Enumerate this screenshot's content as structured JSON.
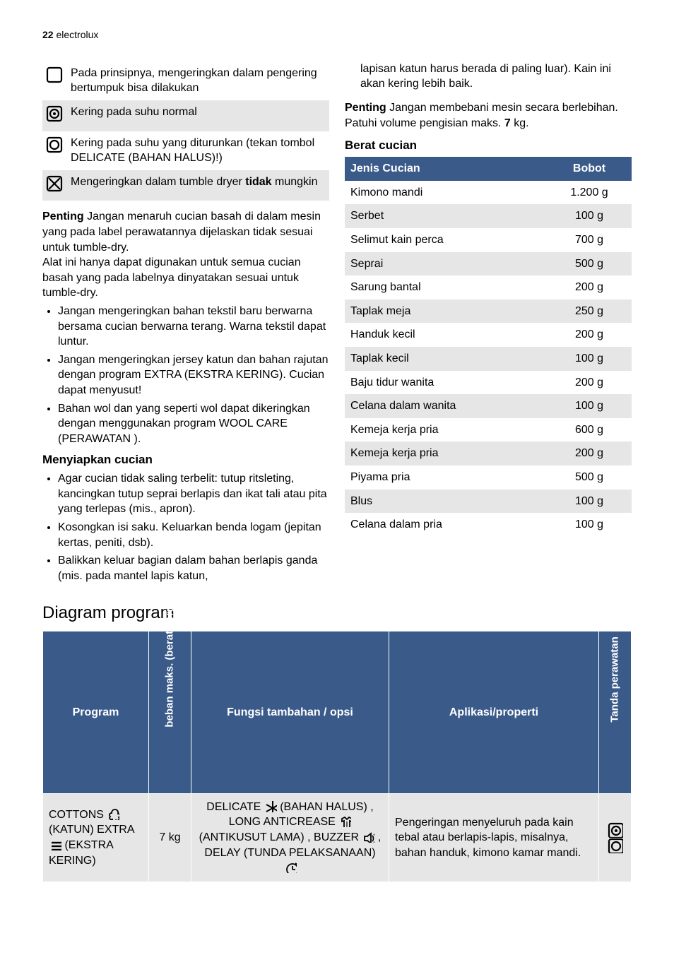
{
  "header": {
    "page_number": "22",
    "brand": "electrolux"
  },
  "colors": {
    "header_bg": "#3a5a8a",
    "header_fg": "#ffffff",
    "row_shade": "#e6e6e6",
    "text": "#000000",
    "page_bg": "#ffffff"
  },
  "symbol_table": {
    "rows": [
      {
        "text": "Pada prinsipnya, mengeringkan dalam pengering bertumpuk bisa dilakukan",
        "shaded": false
      },
      {
        "text": "Kering pada suhu normal",
        "shaded": true
      },
      {
        "text_prefix": "Kering pada suhu yang diturunkan (tekan tombol DELICATE (BAHAN HALUS)!)",
        "shaded": false
      },
      {
        "text_prefix": "Mengeringkan dalam tumble dryer ",
        "bold": "tidak",
        "text_suffix": " mungkin",
        "shaded": true
      }
    ]
  },
  "left_body": {
    "penting_label": "Penting",
    "penting_text": " Jangan menaruh cucian basah di dalam mesin yang pada label perawatannya dijelaskan tidak sesuai untuk tumble-dry.",
    "para2": "Alat ini hanya dapat digunakan untuk semua cucian basah yang pada labelnya dinyatakan sesuai untuk tumble-dry.",
    "bullets1": [
      "Jangan mengeringkan bahan tekstil baru berwarna bersama cucian berwarna terang. Warna tekstil dapat luntur.",
      "Jangan mengeringkan jersey katun dan bahan rajutan dengan program EXTRA (EKSTRA KERING). Cucian dapat menyusut!",
      "Bahan wol dan yang seperti wol dapat dikeringkan dengan menggunakan program WOOL CARE (PERAWATAN )."
    ],
    "sub_heading": "Menyiapkan cucian",
    "bullets2": [
      "Agar cucian tidak saling terbelit: tutup ritsleting, kancingkan tutup seprai berlapis dan ikat tali atau pita yang terlepas (mis., apron).",
      "Kosongkan isi saku. Keluarkan benda logam (jepitan kertas, peniti, dsb).",
      "Balikkan keluar bagian dalam bahan berlapis ganda (mis. pada mantel lapis katun,"
    ]
  },
  "right_body": {
    "cont": "lapisan katun harus berada di paling luar). Kain ini akan kering lebih baik.",
    "penting_label": "Penting",
    "penting_text_a": " Jangan membebani mesin secara berlebihan. Patuhi volume pengisian maks. ",
    "penting_kg": "7",
    "penting_text_b": " kg.",
    "berat_heading": "Berat cucian"
  },
  "weight_table": {
    "headers": [
      "Jenis Cucian",
      "Bobot"
    ],
    "rows": [
      {
        "name": "Kimono mandi",
        "weight": "1.200 g",
        "shaded": false
      },
      {
        "name": "Serbet",
        "weight": "100 g",
        "shaded": true
      },
      {
        "name": "Selimut kain perca",
        "weight": "700 g",
        "shaded": false
      },
      {
        "name": "Seprai",
        "weight": "500 g",
        "shaded": true
      },
      {
        "name": "Sarung bantal",
        "weight": "200 g",
        "shaded": false
      },
      {
        "name": "Taplak meja",
        "weight": "250 g",
        "shaded": true
      },
      {
        "name": "Handuk kecil",
        "weight": "200 g",
        "shaded": false
      },
      {
        "name": "Taplak kecil",
        "weight": "100 g",
        "shaded": true
      },
      {
        "name": "Baju tidur wanita",
        "weight": "200 g",
        "shaded": false
      },
      {
        "name": "Celana dalam wanita",
        "weight": "100 g",
        "shaded": true
      },
      {
        "name": "Kemeja kerja pria",
        "weight": "600 g",
        "shaded": false
      },
      {
        "name": "Kemeja kerja pria",
        "weight": "200 g",
        "shaded": true
      },
      {
        "name": "Piyama pria",
        "weight": "500 g",
        "shaded": false
      },
      {
        "name": "Blus",
        "weight": "100 g",
        "shaded": true
      },
      {
        "name": "Celana dalam pria",
        "weight": "100 g",
        "shaded": false
      }
    ]
  },
  "diagram": {
    "heading": "Diagram program",
    "headers": {
      "program": "Program",
      "beban": "beban maks. (berat kering)",
      "fungsi": "Fungsi tambahan / opsi",
      "aplikasi": "Aplikasi/properti",
      "tanda": "Tanda perawatan"
    },
    "row": {
      "program_a": "COTTONS ",
      "program_b": " (KATUN) EXTRA ",
      "program_c": " (EKSTRA KERING)",
      "beban": "7 kg",
      "fungsi_a": "DELICATE ",
      "fungsi_b": " (BAHAN HALUS) , LONG ANTICREASE ",
      "fungsi_c": " (ANTIKUSUT LAMA) , BUZZER ",
      "fungsi_d": " , DELAY (TUNDA PELAKSANAAN) ",
      "aplikasi": "Pengeringan menyeluruh pada kain tebal atau berlapis-lapis, misalnya, bahan handuk, kimono kamar mandi."
    }
  }
}
